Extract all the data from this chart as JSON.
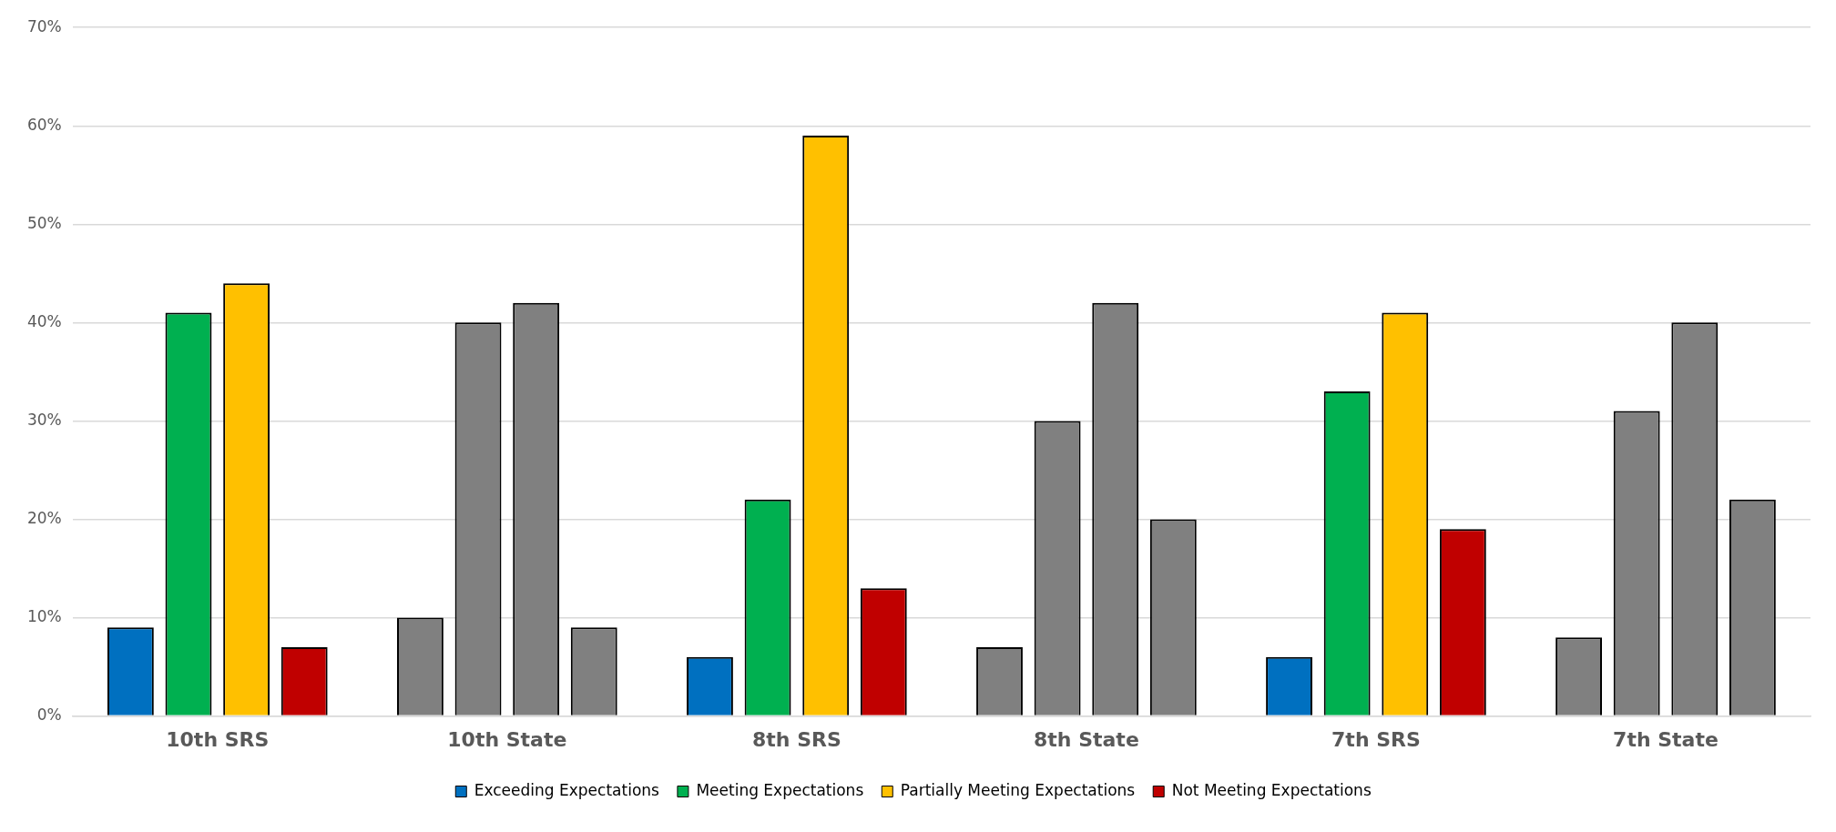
{
  "chart_data": {
    "type": "bar",
    "categories": [
      "10th SRS",
      "10th State",
      "8th SRS",
      "8th State",
      "7th SRS",
      "7th State"
    ],
    "series": [
      {
        "name": "Exceeding Expectations",
        "color": "#0070c0",
        "colors": [
          "#0070c0",
          "#808080",
          "#0070c0",
          "#808080",
          "#0070c0",
          "#808080"
        ],
        "values": [
          9,
          10,
          6,
          7,
          6,
          8
        ]
      },
      {
        "name": "Meeting Expectations",
        "color": "#00b050",
        "colors": [
          "#00b050",
          "#808080",
          "#00b050",
          "#808080",
          "#00b050",
          "#808080"
        ],
        "values": [
          41,
          40,
          22,
          30,
          33,
          31
        ]
      },
      {
        "name": "Partially Meeting Expectations",
        "color": "#ffc000",
        "colors": [
          "#ffc000",
          "#808080",
          "#ffc000",
          "#808080",
          "#ffc000",
          "#808080"
        ],
        "values": [
          44,
          42,
          59,
          42,
          41,
          40
        ]
      },
      {
        "name": "Not Meeting Expectations",
        "color": "#c00000",
        "colors": [
          "#c00000",
          "#808080",
          "#c00000",
          "#808080",
          "#c00000",
          "#808080"
        ],
        "values": [
          7,
          9,
          13,
          20,
          19,
          22
        ]
      }
    ],
    "ylim": [
      0,
      70
    ],
    "yticks": [
      {
        "value": 0,
        "label": "0%"
      },
      {
        "value": 10,
        "label": "10%"
      },
      {
        "value": 20,
        "label": "20%"
      },
      {
        "value": 30,
        "label": "30%"
      },
      {
        "value": 40,
        "label": "40%"
      },
      {
        "value": 50,
        "label": "50%"
      },
      {
        "value": 60,
        "label": "60%"
      },
      {
        "value": 70,
        "label": "70%"
      }
    ],
    "grid": "y",
    "legend": "bottom"
  }
}
